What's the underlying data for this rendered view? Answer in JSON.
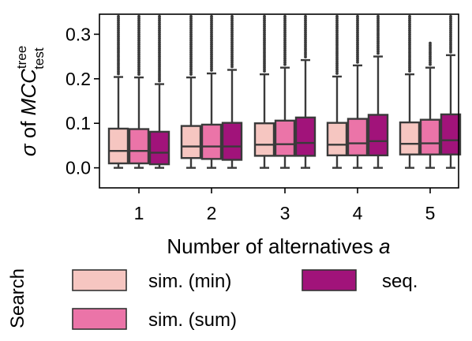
{
  "chart_data": {
    "type": "boxplot",
    "x_categories": [
      "1",
      "2",
      "3",
      "4",
      "5"
    ],
    "xlabel_prefix": "Number of alternatives ",
    "xlabel_var": "a",
    "ylabel_sigma": "σ",
    "ylabel_of": " of ",
    "ylabel_mcc": "MCC",
    "ylabel_sup": "tree",
    "ylabel_sub": "test",
    "y_ticks": [
      "0.0",
      "0.1",
      "0.2",
      "0.3"
    ],
    "y_tick_values": [
      0.0,
      0.1,
      0.2,
      0.3
    ],
    "ylim": [
      -0.045,
      0.345
    ],
    "legend_title": "Search",
    "series": [
      {
        "name": "sim. (min)",
        "color": "#f6c6c1",
        "boxes": [
          {
            "q1": 0.01,
            "median": 0.038,
            "q3": 0.088,
            "whisker_low": 0.0,
            "whisker_high": 0.204,
            "outlier_max": 0.34
          },
          {
            "q1": 0.022,
            "median": 0.048,
            "q3": 0.094,
            "whisker_low": 0.0,
            "whisker_high": 0.203,
            "outlier_max": 0.34
          },
          {
            "q1": 0.027,
            "median": 0.052,
            "q3": 0.1,
            "whisker_low": 0.0,
            "whisker_high": 0.21,
            "outlier_max": 0.34
          },
          {
            "q1": 0.028,
            "median": 0.052,
            "q3": 0.101,
            "whisker_low": 0.0,
            "whisker_high": 0.205,
            "outlier_max": 0.34
          },
          {
            "q1": 0.03,
            "median": 0.054,
            "q3": 0.102,
            "whisker_low": 0.0,
            "whisker_high": 0.21,
            "outlier_max": 0.34
          }
        ]
      },
      {
        "name": "sim. (sum)",
        "color": "#eb74a8",
        "boxes": [
          {
            "q1": 0.01,
            "median": 0.038,
            "q3": 0.087,
            "whisker_low": 0.0,
            "whisker_high": 0.203,
            "outlier_max": 0.34
          },
          {
            "q1": 0.02,
            "median": 0.048,
            "q3": 0.097,
            "whisker_low": 0.0,
            "whisker_high": 0.212,
            "outlier_max": 0.34
          },
          {
            "q1": 0.027,
            "median": 0.053,
            "q3": 0.106,
            "whisker_low": 0.0,
            "whisker_high": 0.225,
            "outlier_max": 0.34
          },
          {
            "q1": 0.028,
            "median": 0.055,
            "q3": 0.11,
            "whisker_low": 0.0,
            "whisker_high": 0.23,
            "outlier_max": 0.34
          },
          {
            "q1": 0.03,
            "median": 0.055,
            "q3": 0.108,
            "whisker_low": 0.0,
            "whisker_high": 0.225,
            "outlier_max": 0.28
          }
        ]
      },
      {
        "name": "seq.",
        "color": "#a1137a",
        "boxes": [
          {
            "q1": 0.008,
            "median": 0.034,
            "q3": 0.081,
            "whisker_low": 0.0,
            "whisker_high": 0.188,
            "outlier_max": 0.34
          },
          {
            "q1": 0.018,
            "median": 0.048,
            "q3": 0.101,
            "whisker_low": 0.0,
            "whisker_high": 0.22,
            "outlier_max": 0.34
          },
          {
            "q1": 0.027,
            "median": 0.056,
            "q3": 0.113,
            "whisker_low": 0.0,
            "whisker_high": 0.242,
            "outlier_max": 0.34
          },
          {
            "q1": 0.028,
            "median": 0.06,
            "q3": 0.119,
            "whisker_low": 0.0,
            "whisker_high": 0.25,
            "outlier_max": 0.34
          },
          {
            "q1": 0.03,
            "median": 0.062,
            "q3": 0.12,
            "whisker_low": 0.0,
            "whisker_high": 0.253,
            "outlier_max": 0.34
          }
        ]
      }
    ]
  }
}
